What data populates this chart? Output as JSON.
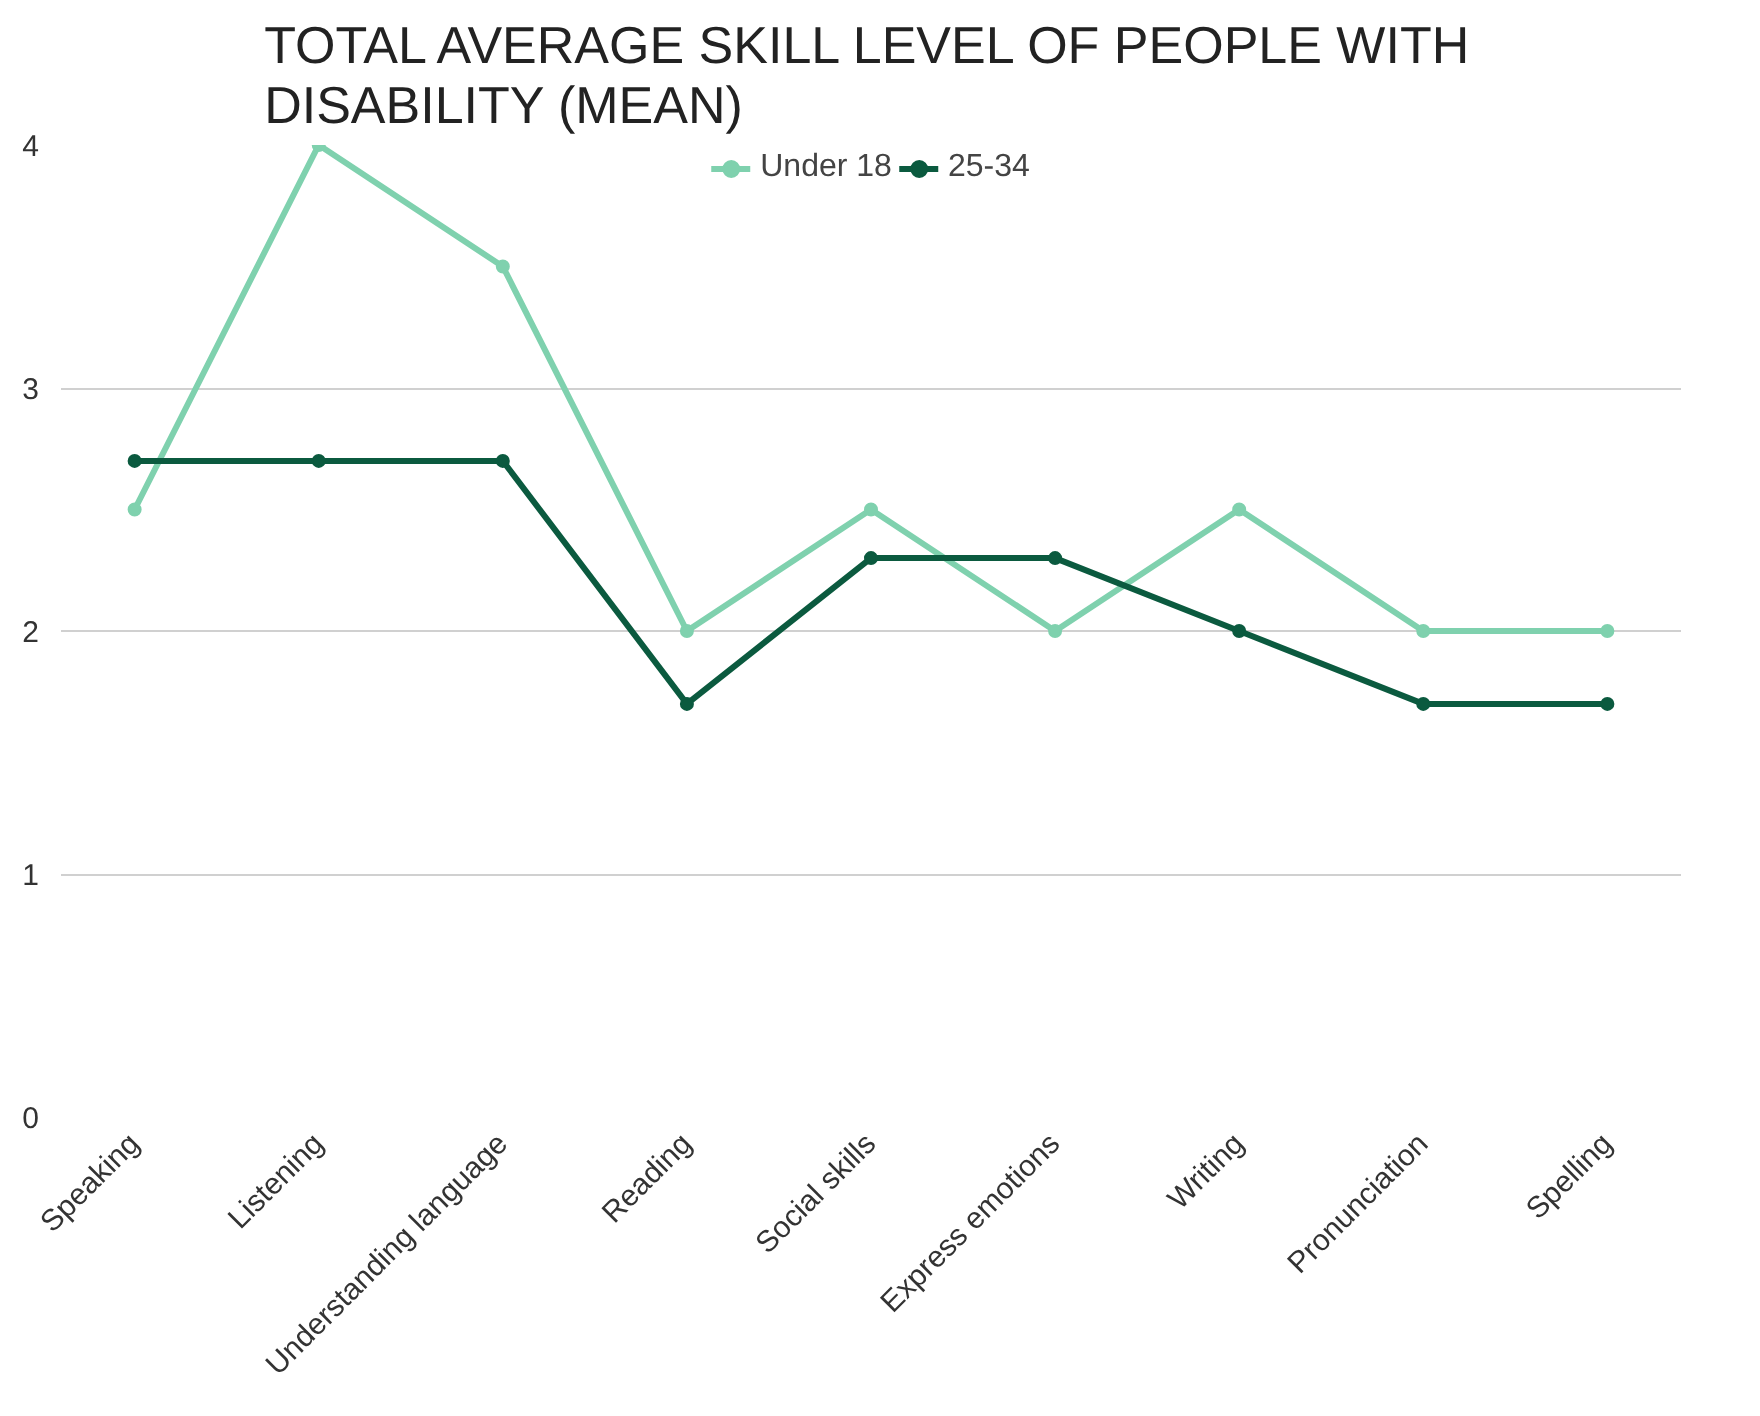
{
  "chart_data": {
    "type": "line",
    "title": "TOTAL AVERAGE SKILL LEVEL OF PEOPLE WITH\nDISABILITY (MEAN)",
    "categories": [
      "Speaking",
      "Listening",
      "Understanding language",
      "Reading",
      "Social skills",
      "Express emotions",
      "Writing",
      "Pronunciation",
      "Spelling"
    ],
    "series": [
      {
        "name": "Under 18",
        "color": "#7fd1ae",
        "values": [
          2.5,
          4.0,
          3.5,
          2.0,
          2.5,
          2.0,
          2.5,
          2.0,
          2.0
        ]
      },
      {
        "name": "25-34",
        "color": "#0b5a3f",
        "values": [
          2.7,
          2.7,
          2.7,
          1.7,
          2.3,
          2.3,
          2.0,
          1.7,
          1.7
        ]
      }
    ],
    "ylim": [
      0,
      4
    ],
    "yticks": [
      0,
      1,
      2,
      3,
      4
    ],
    "grid": "y",
    "legend": "top",
    "marker": "circle",
    "line_style": "solid"
  }
}
